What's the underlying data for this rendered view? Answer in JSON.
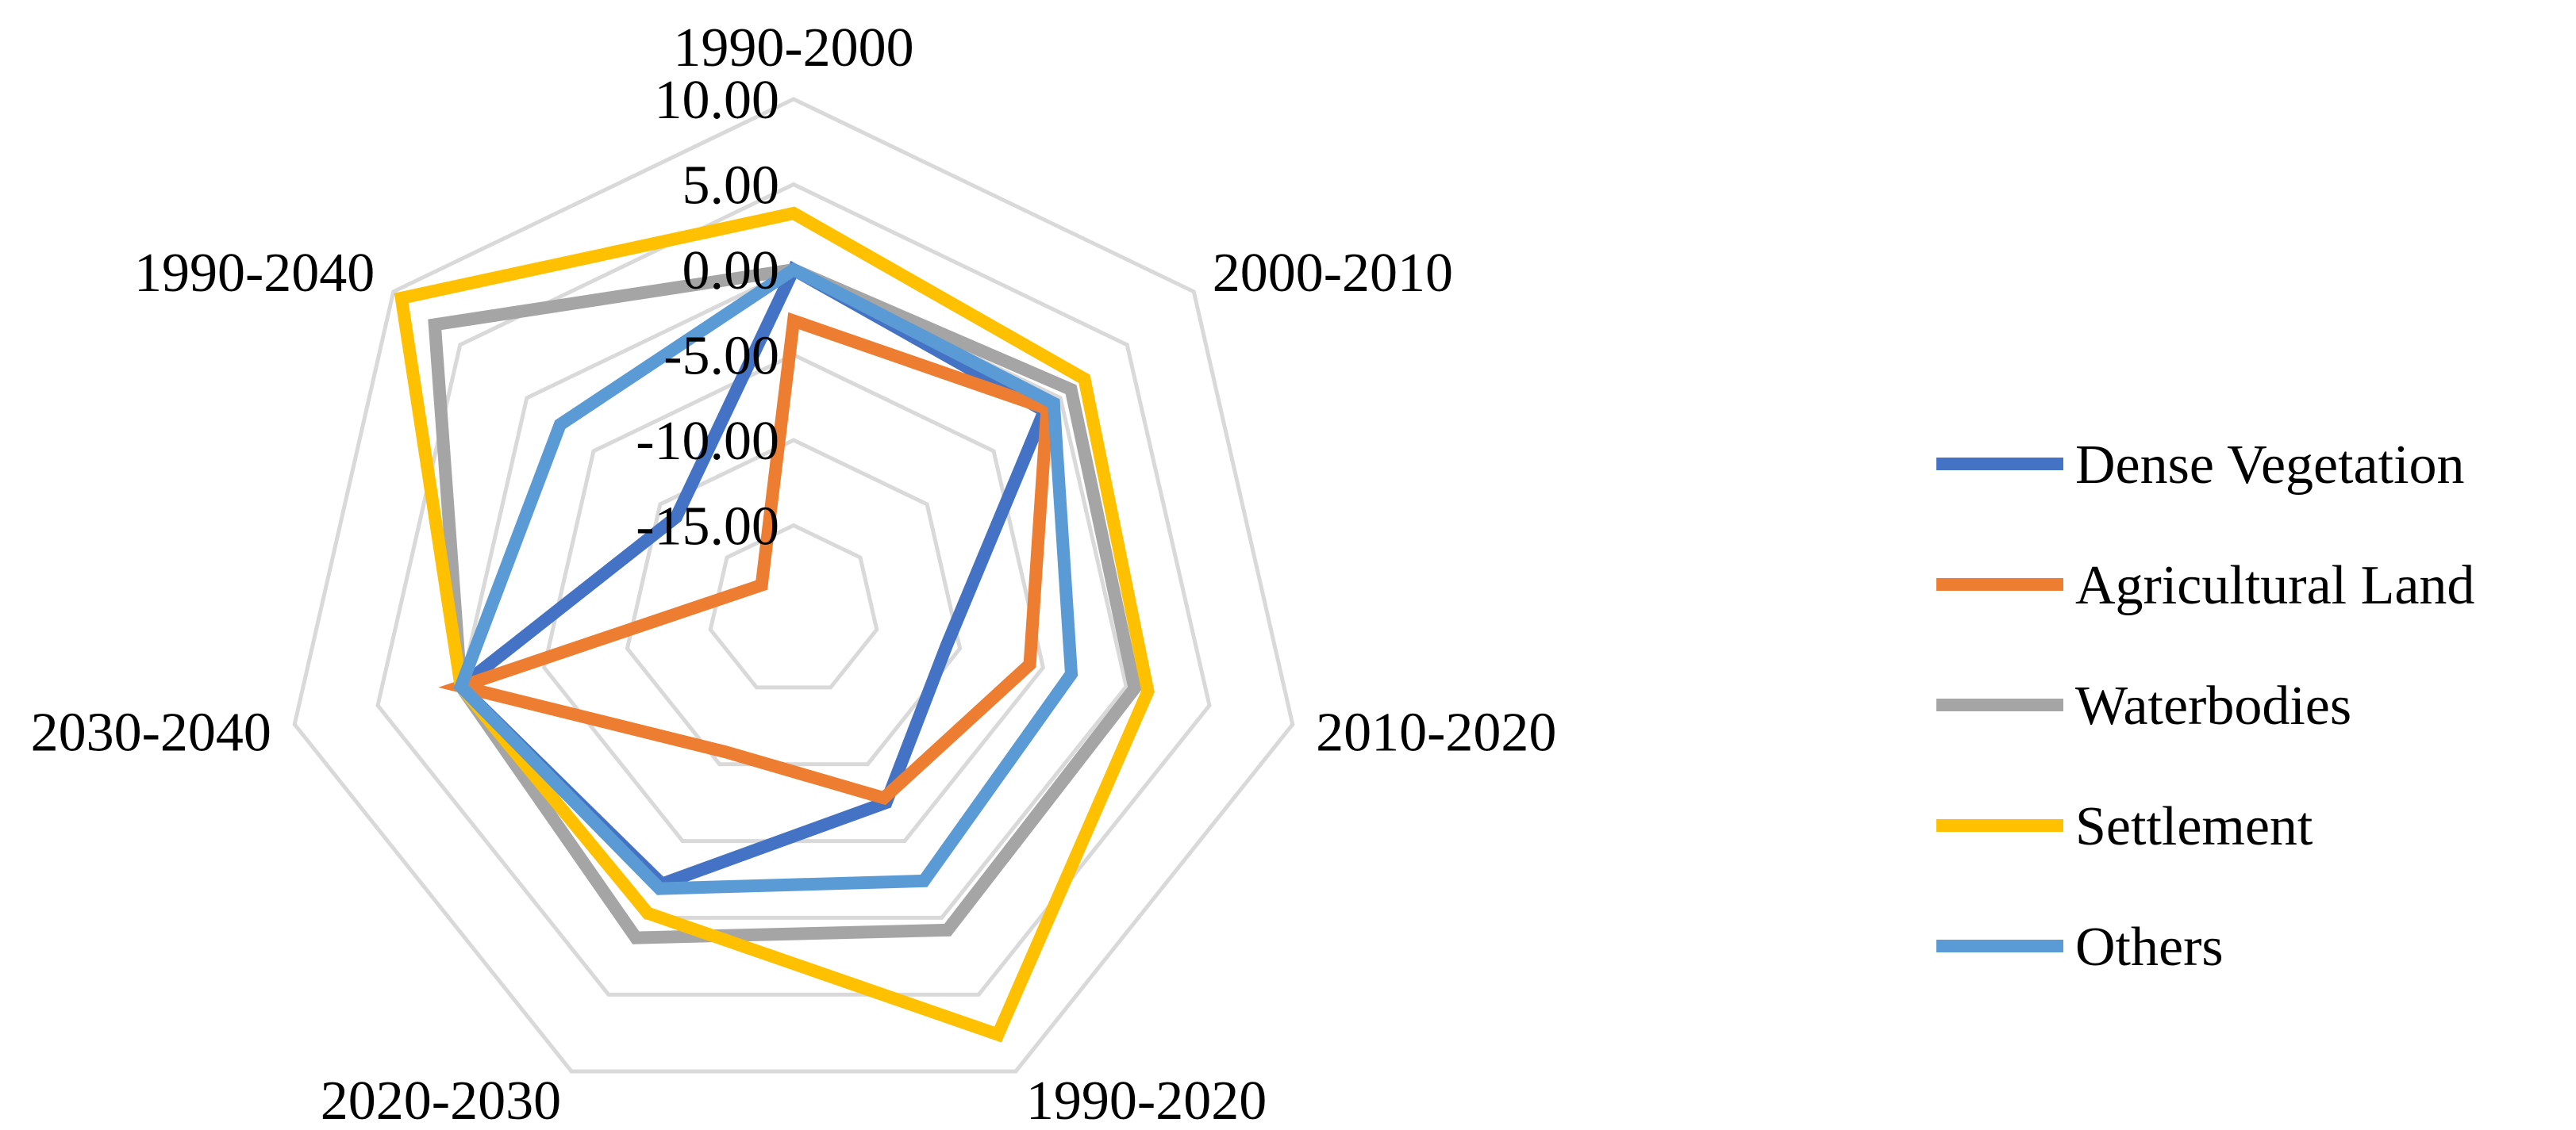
{
  "chart_data": {
    "type": "radar",
    "title": "",
    "categories": [
      "1990-2000",
      "2000-2010",
      "2010-2020",
      "1990-2020",
      "2020-2030",
      "2030-2040",
      "1990-2040"
    ],
    "axis": {
      "min": -20,
      "max": 10,
      "step": 5,
      "tick_labels": [
        "-15.00",
        "-10.00",
        "-5.00",
        "0.00",
        "5.00",
        "10.00"
      ],
      "tick_values": [
        -15,
        -10,
        -5,
        0,
        5,
        10
      ]
    },
    "grid_rings": [
      -20,
      -15,
      -10,
      -5,
      0,
      5,
      10
    ],
    "legend_position": "right",
    "series": [
      {
        "name": "Dense Vegetation",
        "color": "#4472C4",
        "values": [
          0.0,
          -1.2,
          -10.8,
          -7.5,
          -2.2,
          0.0,
          -11.2
        ]
      },
      {
        "name": "Agricultural Land",
        "color": "#ED7D31",
        "values": [
          -3.0,
          -1.0,
          -5.8,
          -7.8,
          -10.8,
          0.0,
          -17.6
        ]
      },
      {
        "name": "Waterbodies",
        "color": "#A5A5A5",
        "values": [
          0.0,
          0.8,
          0.5,
          0.8,
          1.3,
          0.0,
          6.9
        ]
      },
      {
        "name": "Settlement",
        "color": "#FFC000",
        "values": [
          3.3,
          1.8,
          1.3,
          7.6,
          -0.3,
          0.0,
          9.4
        ]
      },
      {
        "name": "Others",
        "color": "#5B9BD5",
        "values": [
          0.0,
          -0.5,
          -3.3,
          -2.4,
          -1.9,
          0.0,
          -2.5
        ]
      }
    ]
  }
}
